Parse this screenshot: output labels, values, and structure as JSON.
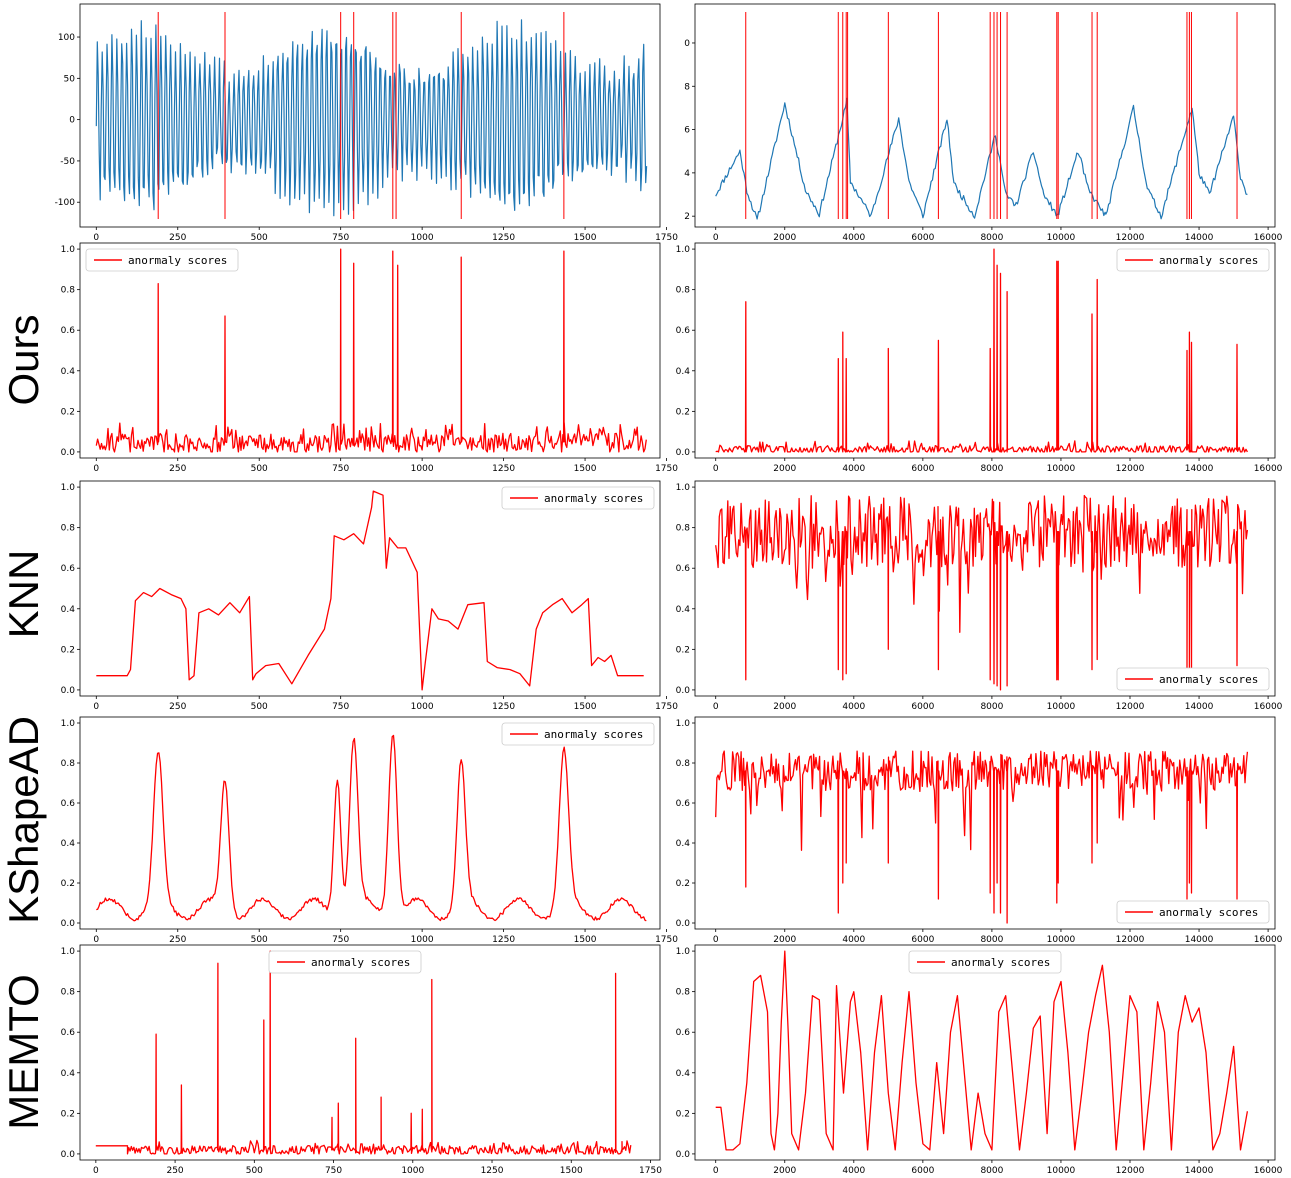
{
  "colors": {
    "signal": "#1f77b4",
    "anomaly": "#ff0000",
    "axis": "#000000"
  },
  "row_labels": [
    "Ours",
    "KNN",
    "KShapeAD",
    "MEMTO"
  ],
  "chart_data": [
    {
      "id": "left-series",
      "type": "line",
      "title": "",
      "xlabel": "",
      "ylabel": "",
      "series": [
        {
          "color": "#1f77b4",
          "kind": "periodic-oscillation"
        }
      ],
      "anomaly_lines": [
        190,
        395,
        750,
        790,
        910,
        920,
        1120,
        1435
      ],
      "xlim": [
        -50,
        1730
      ],
      "ylim": [
        -130,
        140
      ],
      "xticks": [
        "0",
        "250",
        "500",
        "750",
        "1000",
        "1250",
        "1500",
        "1750"
      ],
      "yticks": [
        "-100",
        "-50",
        "0",
        "50",
        "100"
      ],
      "grid": false
    },
    {
      "id": "right-series",
      "type": "line",
      "title": "",
      "xlabel": "",
      "ylabel": "",
      "series": [
        {
          "color": "#1f77b4",
          "kind": "sawtooth-cycles"
        }
      ],
      "anomaly_lines": [
        870,
        3550,
        3680,
        3780,
        3820,
        5000,
        6450,
        7950,
        8060,
        8150,
        8250,
        8440,
        9880,
        9920,
        10900,
        11050,
        13650,
        13720,
        13780,
        15100
      ],
      "xlim": [
        -600,
        16200
      ],
      "ylim": [
        1.5,
        11.8
      ],
      "xticks": [
        "0",
        "2000",
        "4000",
        "6000",
        "8000",
        "10000",
        "12000",
        "14000",
        "16000"
      ],
      "yticks": [
        "2",
        "4",
        "6",
        "8",
        "0"
      ],
      "grid": false
    },
    {
      "id": "ours-left",
      "method": "Ours",
      "type": "line",
      "legend": {
        "label": "anormaly scores",
        "position": "upper-left"
      },
      "spikes": [
        [
          190,
          0.83
        ],
        [
          395,
          0.67
        ],
        [
          750,
          1.0
        ],
        [
          790,
          0.93
        ],
        [
          910,
          0.99
        ],
        [
          925,
          0.92
        ],
        [
          1120,
          0.96
        ],
        [
          1435,
          0.99
        ]
      ],
      "baseline": 0.05,
      "noise": 0.06,
      "xlim": [
        -50,
        1730
      ],
      "ylim": [
        -0.03,
        1.03
      ],
      "xticks": [
        "0",
        "250",
        "500",
        "750",
        "1000",
        "1250",
        "1500",
        "1750"
      ],
      "yticks": [
        "0.0",
        "0.2",
        "0.4",
        "0.6",
        "0.8",
        "1.0"
      ]
    },
    {
      "id": "ours-right",
      "method": "Ours",
      "type": "line",
      "legend": {
        "label": "anormaly scores",
        "position": "upper-right"
      },
      "spikes": [
        [
          870,
          0.74
        ],
        [
          3550,
          0.46
        ],
        [
          3680,
          0.59
        ],
        [
          3780,
          0.46
        ],
        [
          5000,
          0.51
        ],
        [
          6450,
          0.55
        ],
        [
          7950,
          0.51
        ],
        [
          8060,
          1.0
        ],
        [
          8150,
          0.92
        ],
        [
          8250,
          0.88
        ],
        [
          8440,
          0.79
        ],
        [
          9880,
          0.94
        ],
        [
          9920,
          0.94
        ],
        [
          10900,
          0.68
        ],
        [
          11050,
          0.85
        ],
        [
          13650,
          0.5
        ],
        [
          13720,
          0.59
        ],
        [
          13780,
          0.54
        ],
        [
          15100,
          0.53
        ]
      ],
      "baseline": 0.01,
      "noise": 0.03,
      "xlim": [
        -600,
        16200
      ],
      "ylim": [
        -0.03,
        1.03
      ],
      "xticks": [
        "0",
        "2000",
        "4000",
        "6000",
        "8000",
        "10000",
        "12000",
        "14000",
        "16000"
      ],
      "yticks": [
        "0.0",
        "0.2",
        "0.4",
        "0.6",
        "0.8",
        "1.0"
      ]
    },
    {
      "id": "knn-left",
      "method": "KNN",
      "type": "line",
      "legend": {
        "label": "anormaly scores",
        "position": "upper-right"
      },
      "x": [
        0,
        95,
        105,
        120,
        145,
        170,
        195,
        230,
        260,
        275,
        285,
        300,
        315,
        345,
        375,
        410,
        440,
        470,
        480,
        490,
        520,
        560,
        600,
        650,
        700,
        720,
        730,
        760,
        790,
        820,
        845,
        850,
        880,
        890,
        900,
        925,
        950,
        985,
        1000,
        1010,
        1030,
        1050,
        1080,
        1110,
        1140,
        1190,
        1200,
        1230,
        1270,
        1300,
        1330,
        1350,
        1370,
        1400,
        1430,
        1460,
        1490,
        1510,
        1520,
        1540,
        1560,
        1580,
        1600,
        1630,
        1680
      ],
      "y": [
        0.07,
        0.07,
        0.1,
        0.44,
        0.48,
        0.46,
        0.5,
        0.47,
        0.45,
        0.4,
        0.05,
        0.07,
        0.38,
        0.4,
        0.37,
        0.43,
        0.38,
        0.46,
        0.05,
        0.08,
        0.12,
        0.13,
        0.03,
        0.17,
        0.3,
        0.45,
        0.76,
        0.74,
        0.77,
        0.72,
        0.9,
        0.98,
        0.96,
        0.6,
        0.75,
        0.7,
        0.7,
        0.58,
        0.0,
        0.14,
        0.4,
        0.35,
        0.34,
        0.3,
        0.42,
        0.43,
        0.14,
        0.11,
        0.1,
        0.08,
        0.02,
        0.3,
        0.38,
        0.42,
        0.45,
        0.38,
        0.42,
        0.45,
        0.12,
        0.16,
        0.14,
        0.17,
        0.07,
        0.07,
        0.07
      ],
      "xlim": [
        -50,
        1730
      ],
      "ylim": [
        -0.03,
        1.03
      ],
      "xticks": [
        "0",
        "250",
        "500",
        "750",
        "1000",
        "1250",
        "1500",
        "1750"
      ],
      "yticks": [
        "0.0",
        "0.2",
        "0.4",
        "0.6",
        "0.8",
        "1.0"
      ]
    },
    {
      "id": "knn-right",
      "method": "KNN",
      "type": "line",
      "legend": {
        "label": "anormaly scores",
        "position": "lower-right"
      },
      "dips": [
        [
          870,
          0.05
        ],
        [
          3550,
          0.1
        ],
        [
          3680,
          0.05
        ],
        [
          3780,
          0.08
        ],
        [
          5000,
          0.2
        ],
        [
          6450,
          0.1
        ],
        [
          7950,
          0.05
        ],
        [
          8060,
          0.03
        ],
        [
          8150,
          0.02
        ],
        [
          8250,
          0.0
        ],
        [
          8440,
          0.02
        ],
        [
          9880,
          0.05
        ],
        [
          9920,
          0.05
        ],
        [
          10900,
          0.1
        ],
        [
          11050,
          0.15
        ],
        [
          13650,
          0.1
        ],
        [
          13720,
          0.1
        ],
        [
          13780,
          0.1
        ],
        [
          15100,
          0.12
        ]
      ],
      "level": 0.78,
      "noise": 0.18,
      "xlim": [
        -600,
        16200
      ],
      "ylim": [
        -0.03,
        1.03
      ],
      "xticks": [
        "0",
        "2000",
        "4000",
        "6000",
        "8000",
        "10000",
        "12000",
        "14000",
        "16000"
      ],
      "yticks": [
        "0.0",
        "0.2",
        "0.4",
        "0.6",
        "0.8",
        "1.0"
      ]
    },
    {
      "id": "kshape-left",
      "method": "KShapeAD",
      "type": "line",
      "legend": {
        "label": "anormaly scores",
        "position": "upper-right"
      },
      "peaks": [
        [
          190,
          0.81,
          20
        ],
        [
          395,
          0.72,
          18
        ],
        [
          740,
          0.77,
          15
        ],
        [
          790,
          0.92,
          18
        ],
        [
          910,
          1.0,
          18
        ],
        [
          1120,
          0.78,
          18
        ],
        [
          1435,
          0.84,
          20
        ]
      ],
      "baseline": 0.07,
      "xlim": [
        -50,
        1730
      ],
      "ylim": [
        -0.03,
        1.03
      ],
      "xticks": [
        "0",
        "250",
        "500",
        "750",
        "1000",
        "1250",
        "1500",
        "1750"
      ],
      "yticks": [
        "0.0",
        "0.2",
        "0.4",
        "0.6",
        "0.8",
        "1.0"
      ]
    },
    {
      "id": "kshape-right",
      "method": "KShapeAD",
      "type": "line",
      "legend": {
        "label": "anormaly scores",
        "position": "lower-right"
      },
      "dips": [
        [
          870,
          0.18
        ],
        [
          3550,
          0.05
        ],
        [
          3680,
          0.2
        ],
        [
          3780,
          0.3
        ],
        [
          5000,
          0.3
        ],
        [
          6450,
          0.12
        ],
        [
          7950,
          0.15
        ],
        [
          8060,
          0.05
        ],
        [
          8150,
          0.2
        ],
        [
          8250,
          0.05
        ],
        [
          8440,
          0.0
        ],
        [
          9880,
          0.1
        ],
        [
          9920,
          0.2
        ],
        [
          10900,
          0.3
        ],
        [
          11050,
          0.4
        ],
        [
          13650,
          0.12
        ],
        [
          13720,
          0.2
        ],
        [
          13780,
          0.15
        ],
        [
          15100,
          0.12
        ]
      ],
      "level": 0.76,
      "noise": 0.1,
      "xlim": [
        -600,
        16200
      ],
      "ylim": [
        -0.03,
        1.03
      ],
      "xticks": [
        "0",
        "2000",
        "4000",
        "6000",
        "8000",
        "10000",
        "12000",
        "14000",
        "16000"
      ],
      "yticks": [
        "0.0",
        "0.2",
        "0.4",
        "0.6",
        "0.8",
        "1.0"
      ]
    },
    {
      "id": "memto-left",
      "method": "MEMTO",
      "type": "line",
      "legend": {
        "label": "anormaly scores",
        "position": "upper-center"
      },
      "spikes": [
        [
          190,
          0.59
        ],
        [
          270,
          0.34
        ],
        [
          385,
          0.94
        ],
        [
          530,
          0.66
        ],
        [
          550,
          1.0
        ],
        [
          745,
          0.18
        ],
        [
          765,
          0.25
        ],
        [
          820,
          0.57
        ],
        [
          900,
          0.28
        ],
        [
          995,
          0.2
        ],
        [
          1030,
          0.22
        ],
        [
          1060,
          0.86
        ],
        [
          1640,
          0.89
        ],
        [
          1660,
          0.06
        ]
      ],
      "baseline": 0.02,
      "noise": 0.03,
      "start_flat": [
        0,
        100,
        0.04
      ],
      "xlim": [
        -50,
        1780
      ],
      "ylim": [
        -0.03,
        1.03
      ],
      "xticks": [
        "0",
        "250",
        "500",
        "750",
        "1000",
        "1250",
        "1500",
        "1750"
      ],
      "yticks": [
        "0.0",
        "0.2",
        "0.4",
        "0.6",
        "0.8",
        "1.0"
      ]
    },
    {
      "id": "memto-right",
      "method": "MEMTO",
      "type": "line",
      "legend": {
        "label": "anormaly scores",
        "position": "upper-center"
      },
      "x": [
        0,
        150,
        300,
        500,
        700,
        900,
        1100,
        1300,
        1500,
        1600,
        1700,
        1800,
        1900,
        2000,
        2100,
        2200,
        2400,
        2600,
        2800,
        3000,
        3200,
        3400,
        3500,
        3700,
        3900,
        4000,
        4200,
        4400,
        4600,
        4800,
        5000,
        5200,
        5400,
        5600,
        5800,
        6000,
        6200,
        6400,
        6600,
        6800,
        7000,
        7200,
        7400,
        7600,
        7800,
        8000,
        8200,
        8400,
        8600,
        8800,
        9000,
        9200,
        9400,
        9600,
        9800,
        10000,
        10200,
        10400,
        10600,
        10800,
        11000,
        11200,
        11400,
        11600,
        11800,
        12000,
        12200,
        12400,
        12600,
        12800,
        13000,
        13200,
        13400,
        13600,
        13800,
        14000,
        14200,
        14400,
        14600,
        14800,
        15000,
        15200,
        15400
      ],
      "y": [
        0.23,
        0.23,
        0.02,
        0.02,
        0.05,
        0.35,
        0.85,
        0.88,
        0.7,
        0.1,
        0.02,
        0.2,
        0.65,
        1.0,
        0.6,
        0.1,
        0.02,
        0.3,
        0.78,
        0.76,
        0.1,
        0.02,
        0.83,
        0.3,
        0.75,
        0.8,
        0.5,
        0.02,
        0.5,
        0.78,
        0.3,
        0.02,
        0.45,
        0.8,
        0.35,
        0.05,
        0.02,
        0.45,
        0.1,
        0.6,
        0.78,
        0.4,
        0.02,
        0.3,
        0.1,
        0.02,
        0.7,
        0.78,
        0.4,
        0.02,
        0.3,
        0.62,
        0.68,
        0.1,
        0.75,
        0.85,
        0.5,
        0.02,
        0.3,
        0.6,
        0.78,
        0.93,
        0.6,
        0.02,
        0.4,
        0.78,
        0.7,
        0.02,
        0.35,
        0.75,
        0.6,
        0.02,
        0.6,
        0.78,
        0.65,
        0.72,
        0.5,
        0.02,
        0.1,
        0.3,
        0.53,
        0.02,
        0.21
      ],
      "xlim": [
        -600,
        16200
      ],
      "ylim": [
        -0.03,
        1.03
      ],
      "xticks": [
        "0",
        "2000",
        "4000",
        "6000",
        "8000",
        "10000",
        "12000",
        "14000",
        "16000"
      ],
      "yticks": [
        "0.0",
        "0.2",
        "0.4",
        "0.6",
        "0.8",
        "1.0"
      ]
    }
  ]
}
